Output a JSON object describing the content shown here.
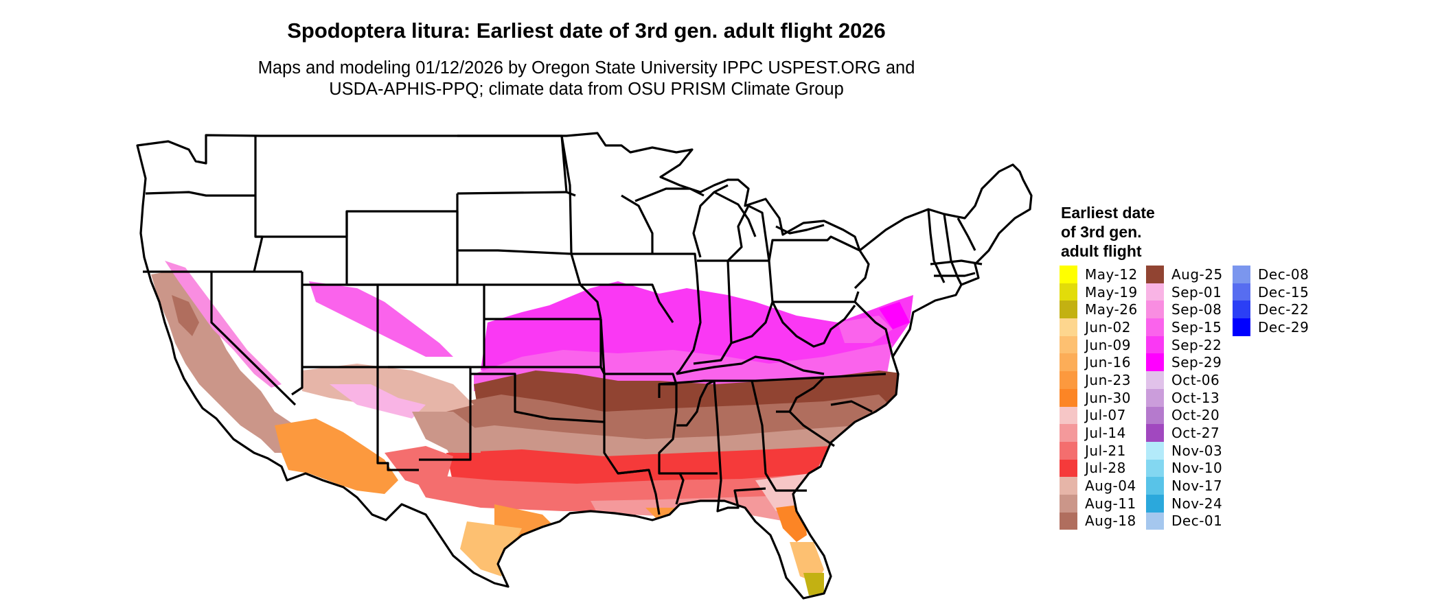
{
  "title": "Spodoptera litura: Earliest date of 3rd gen. adult flight 2026",
  "subtitle_line1": "Maps and modeling 01/12/2026 by Oregon State University IPPC USPEST.ORG and",
  "subtitle_line2": "USDA-APHIS-PPQ; climate data from OSU PRISM Climate Group",
  "legend": {
    "title": "Earliest date\nof 3rd gen.\nadult flight",
    "columns": [
      [
        {
          "label": "May-12",
          "color": "#FFFF00"
        },
        {
          "label": "May-19",
          "color": "#E2DC0A"
        },
        {
          "label": "May-26",
          "color": "#C3B112"
        },
        {
          "label": "Jun-02",
          "color": "#FDD68E"
        },
        {
          "label": "Jun-09",
          "color": "#FDC071"
        },
        {
          "label": "Jun-16",
          "color": "#FCAD58"
        },
        {
          "label": "Jun-23",
          "color": "#FC993E"
        },
        {
          "label": "Jun-30",
          "color": "#FC8525"
        },
        {
          "label": "Jul-07",
          "color": "#F6C6C6"
        },
        {
          "label": "Jul-14",
          "color": "#F4999B"
        },
        {
          "label": "Jul-21",
          "color": "#F46E6E"
        },
        {
          "label": "Jul-28",
          "color": "#F53A3A"
        },
        {
          "label": "Aug-04",
          "color": "#E6B5A8"
        },
        {
          "label": "Aug-11",
          "color": "#CB9689"
        },
        {
          "label": "Aug-18",
          "color": "#B06E5E"
        }
      ],
      [
        {
          "label": "Aug-25",
          "color": "#914432"
        },
        {
          "label": "Sep-01",
          "color": "#F9B4E5"
        },
        {
          "label": "Sep-08",
          "color": "#F98DE1"
        },
        {
          "label": "Sep-15",
          "color": "#FA63EC"
        },
        {
          "label": "Sep-22",
          "color": "#FA38F4"
        },
        {
          "label": "Sep-29",
          "color": "#FF00FF"
        },
        {
          "label": "Oct-06",
          "color": "#E1C2EA"
        },
        {
          "label": "Oct-13",
          "color": "#CB9DDB"
        },
        {
          "label": "Oct-20",
          "color": "#B57ACD"
        },
        {
          "label": "Oct-27",
          "color": "#A148BF"
        },
        {
          "label": "Nov-03",
          "color": "#B3EAFA"
        },
        {
          "label": "Nov-10",
          "color": "#83D7F1"
        },
        {
          "label": "Nov-17",
          "color": "#58C3E8"
        },
        {
          "label": "Nov-24",
          "color": "#2BA8DC"
        },
        {
          "label": "Dec-01",
          "color": "#A5C7EE"
        }
      ],
      [
        {
          "label": "Dec-08",
          "color": "#7B96EE"
        },
        {
          "label": "Dec-15",
          "color": "#576DF0"
        },
        {
          "label": "Dec-22",
          "color": "#2B3FF5"
        },
        {
          "label": "Dec-29",
          "color": "#0000FF"
        }
      ]
    ]
  }
}
